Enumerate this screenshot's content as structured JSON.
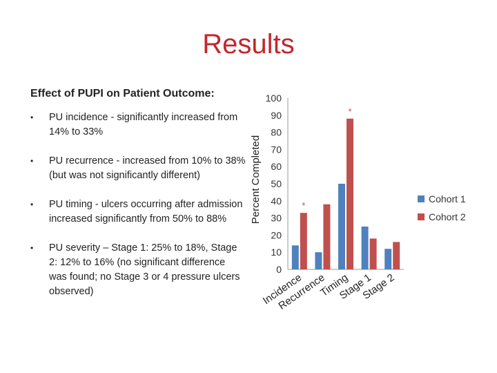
{
  "slide": {
    "title": "Results",
    "subtitle": "Effect of PUPI on Patient Outcome:",
    "bullets": [
      "PU incidence - significantly increased from 14% to 33%",
      "PU recurrence - increased from 10% to 38% (but was not significantly different)",
      "PU timing - ulcers occurring after admission increased significantly from 50% to 88%",
      "PU severity – Stage 1: 25% to 18%, Stage 2: 12% to 16% (no significant difference was found; no Stage 3 or 4 pressure ulcers observed)"
    ],
    "bullet_marker": "•"
  },
  "chart_data": {
    "type": "bar",
    "title": "",
    "xlabel": "",
    "ylabel": "Percent Completed",
    "categories": [
      "Incidence",
      "Recurrence",
      "Timing",
      "Stage 1",
      "Stage 2"
    ],
    "series": [
      {
        "name": "Cohort 1",
        "color": "#4f81bd",
        "values": [
          14,
          10,
          50,
          25,
          12
        ]
      },
      {
        "name": "Cohort 2",
        "color": "#c0504d",
        "values": [
          33,
          38,
          88,
          18,
          16
        ]
      }
    ],
    "ylim": [
      0,
      100
    ],
    "yticks": [
      0,
      10,
      20,
      30,
      40,
      50,
      60,
      70,
      80,
      90,
      100
    ],
    "grid": false,
    "legend": "right",
    "annotations": [
      {
        "text": "*",
        "category": "Incidence"
      },
      {
        "text": "*",
        "category": "Timing"
      }
    ]
  }
}
